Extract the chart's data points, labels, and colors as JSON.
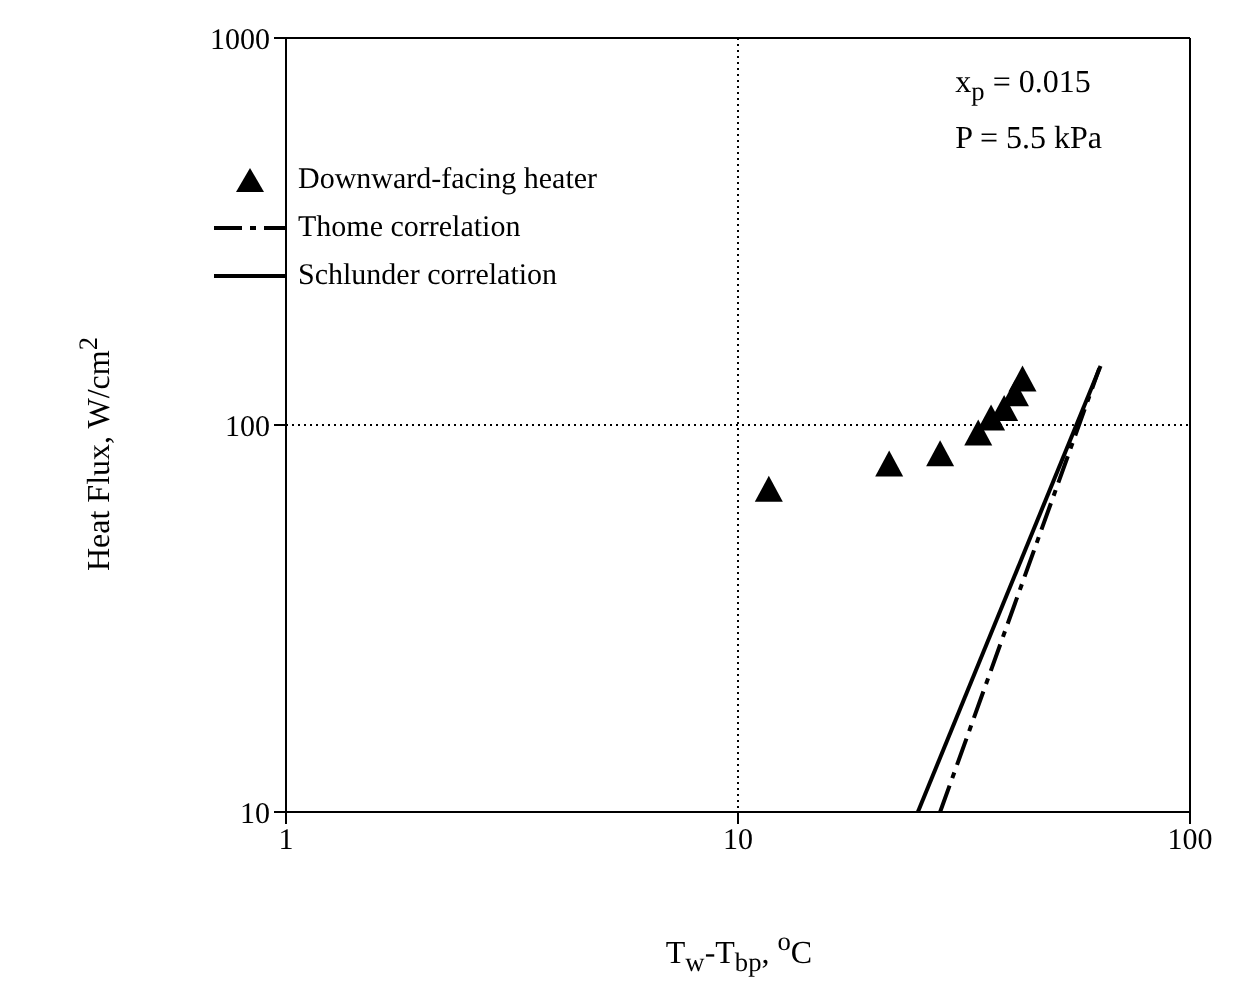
{
  "chart_data": {
    "type": "scatter",
    "xlabel": "T$_{w}$-T$_{bp}$, $^{o}$C",
    "ylabel": "Heat Flux,  W/cm$^{2}$",
    "log": "xy",
    "xlim": [
      1,
      100
    ],
    "ylim": [
      10,
      1000
    ],
    "xticks": [
      1,
      10,
      100
    ],
    "yticks": [
      10,
      100,
      1000
    ],
    "grid": true,
    "legend": "top left",
    "annotations": [
      "x$_{p}$ = 0.015",
      "P = 5.5 kPa"
    ],
    "series": [
      {
        "name": "Downward-facing heater",
        "type": "scatter",
        "marker": "triangle",
        "color": "#000000",
        "x": [
          11.7,
          21.6,
          28,
          34,
          36.3,
          38.8,
          41,
          42.6
        ],
        "values": [
          68,
          79,
          84,
          95,
          104,
          110,
          120,
          131
        ]
      },
      {
        "name": "Thome correlation",
        "type": "line",
        "marker": "none",
        "line_style": "dashed",
        "color": "#000000",
        "x": [
          28,
          63
        ],
        "values": [
          10,
          140
        ]
      },
      {
        "name": "Schlunder correlation",
        "type": "line",
        "marker": "none",
        "line_style": "solid",
        "color": "#000000",
        "x": [
          25,
          63.4
        ],
        "values": [
          10,
          142
        ]
      }
    ]
  }
}
